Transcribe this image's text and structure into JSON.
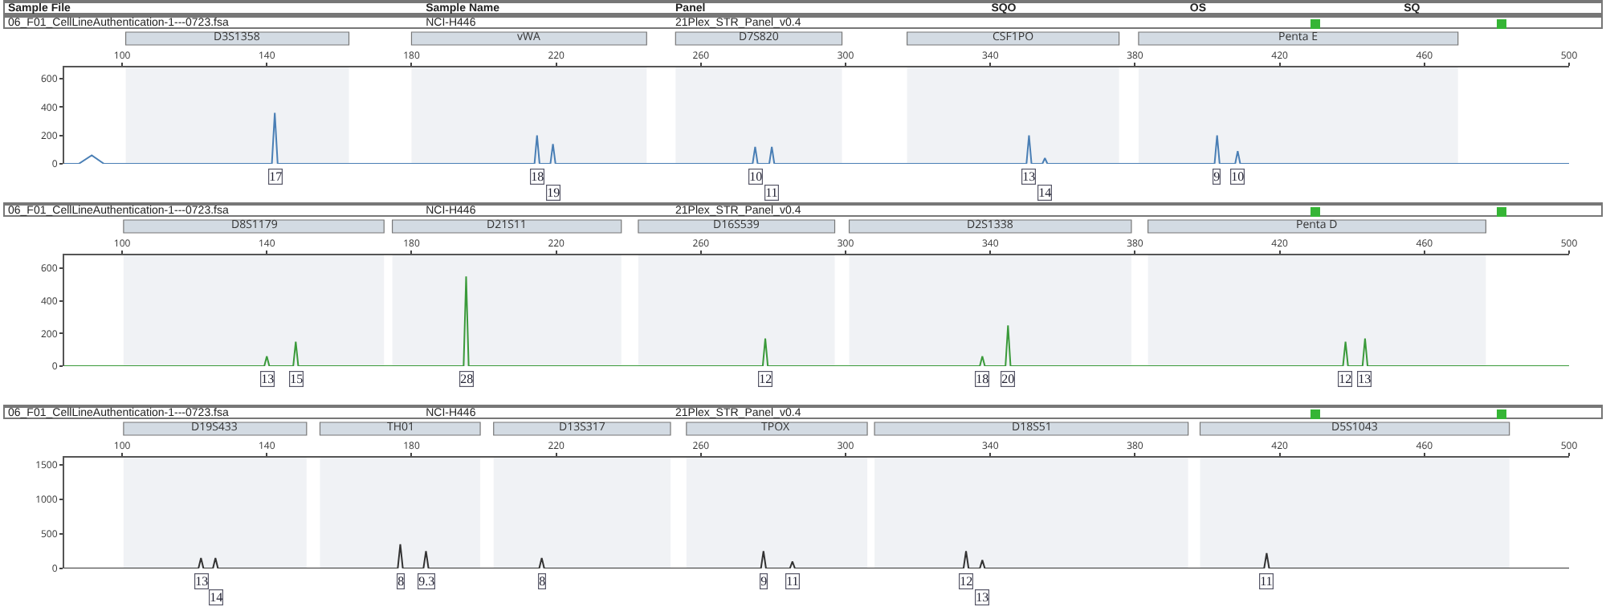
{
  "chart_data": [
    {
      "type": "line",
      "color": "#4a7fb5",
      "xlim": [
        84,
        500
      ],
      "xticks": [
        100,
        140,
        180,
        220,
        260,
        300,
        340,
        380,
        420,
        460,
        500
      ],
      "ylim": [
        0,
        680
      ],
      "yticks": [
        0,
        200,
        400,
        600
      ],
      "grid": false,
      "marker": "none",
      "line_style": "solid",
      "x": [
        84,
        88,
        91.6,
        95,
        141.4,
        142.2,
        143,
        214,
        214.7,
        215.4,
        218.4,
        219.1,
        219.8,
        274.3,
        275,
        275.7,
        278.9,
        279.6,
        280.3,
        350,
        350.7,
        351.4,
        354.4,
        355.1,
        355.8,
        402,
        402.7,
        403.4,
        407.7,
        408.4,
        409.1,
        500
      ],
      "values": [
        0,
        0,
        60,
        0,
        0,
        360,
        0,
        0,
        200,
        0,
        0,
        140,
        0,
        0,
        120,
        0,
        0,
        120,
        0,
        0,
        200,
        0,
        0,
        40,
        0,
        0,
        200,
        0,
        0,
        90,
        0,
        0
      ],
      "bands": [
        {
          "axis": "x",
          "from": 101,
          "to": 162.7,
          "label": "D3S1358",
          "color": "#d3dbe3"
        },
        {
          "axis": "x",
          "from": 180,
          "to": 245,
          "label": "vWA",
          "color": "#d3dbe3"
        },
        {
          "axis": "x",
          "from": 253,
          "to": 299,
          "label": "D7S820",
          "color": "#d3dbe3"
        },
        {
          "axis": "x",
          "from": 317,
          "to": 375.6,
          "label": "CSF1PO",
          "color": "#d3dbe3"
        },
        {
          "axis": "x",
          "from": 381,
          "to": 469.3,
          "label": "Penta E",
          "color": "#d3dbe3"
        }
      ],
      "annotations": [
        "Sample File",
        "Sample Name",
        "Panel",
        "SQO",
        "OS",
        "SQ",
        "06_F01_CellLineAuthentication-1---0723.fsa",
        "NCI-H446",
        "21Plex_STR_Panel_v0.4",
        {
          "text": "17",
          "x": 142.2,
          "y": 0
        },
        {
          "text": "18",
          "x": 214.7,
          "y": 0
        },
        {
          "text": "19",
          "x": 219.1,
          "y": 0
        },
        {
          "text": "10",
          "x": 275,
          "y": 0
        },
        {
          "text": "11",
          "x": 279.6,
          "y": 0
        },
        {
          "text": "13",
          "x": 350.7,
          "y": 0
        },
        {
          "text": "14",
          "x": 355.1,
          "y": 0
        },
        {
          "text": "9",
          "x": 402.7,
          "y": 0
        },
        {
          "text": "10",
          "x": 408.4,
          "y": 0
        }
      ]
    },
    {
      "type": "line",
      "color": "#3a9a3a",
      "xlim": [
        84,
        500
      ],
      "xticks": [
        100,
        140,
        180,
        220,
        260,
        300,
        340,
        380,
        420,
        460,
        500
      ],
      "ylim": [
        0,
        680
      ],
      "yticks": [
        0,
        200,
        400,
        600
      ],
      "grid": false,
      "marker": "none",
      "line_style": "solid",
      "x": [
        84,
        139.3,
        140,
        140.7,
        147.3,
        148,
        148.7,
        194.4,
        195.1,
        195.8,
        277.1,
        277.8,
        278.5,
        337.1,
        337.8,
        338.5,
        344.2,
        344.9,
        345.6,
        437.5,
        438.2,
        438.9,
        442.9,
        443.6,
        444.3,
        500
      ],
      "values": [
        0,
        0,
        60,
        0,
        0,
        150,
        0,
        0,
        550,
        0,
        0,
        170,
        0,
        0,
        60,
        0,
        0,
        250,
        0,
        0,
        150,
        0,
        0,
        170,
        0,
        0
      ],
      "bands": [
        {
          "axis": "x",
          "from": 100.4,
          "to": 172.4,
          "label": "D8S1179",
          "color": "#d3dbe3"
        },
        {
          "axis": "x",
          "from": 174.7,
          "to": 238,
          "label": "D21S11",
          "color": "#d3dbe3"
        },
        {
          "axis": "x",
          "from": 242.7,
          "to": 297,
          "label": "D16S539",
          "color": "#d3dbe3"
        },
        {
          "axis": "x",
          "from": 301,
          "to": 379,
          "label": "D2S1338",
          "color": "#d3dbe3"
        },
        {
          "axis": "x",
          "from": 383.6,
          "to": 477,
          "label": "Penta D",
          "color": "#d3dbe3"
        }
      ],
      "annotations": [
        "06_F01_CellLineAuthentication-1---0723.fsa",
        "NCI-H446",
        "21Plex_STR_Panel_v0.4",
        {
          "text": "13",
          "x": 140,
          "y": 0
        },
        {
          "text": "15",
          "x": 148,
          "y": 0
        },
        {
          "text": "28",
          "x": 195.1,
          "y": 0
        },
        {
          "text": "12",
          "x": 277.8,
          "y": 0
        },
        {
          "text": "18",
          "x": 337.8,
          "y": 0
        },
        {
          "text": "20",
          "x": 344.9,
          "y": 0
        },
        {
          "text": "12",
          "x": 438.2,
          "y": 0
        },
        {
          "text": "13",
          "x": 443.6,
          "y": 0
        }
      ]
    },
    {
      "type": "line",
      "color": "#333333",
      "xlim": [
        84,
        500
      ],
      "xticks": [
        100,
        140,
        180,
        220,
        260,
        300,
        340,
        380,
        420,
        460,
        500
      ],
      "ylim": [
        0,
        1600
      ],
      "yticks": [
        0,
        500,
        1000,
        1500
      ],
      "grid": false,
      "marker": "none",
      "line_style": "solid",
      "x": [
        84,
        121.1,
        121.8,
        122.5,
        125.1,
        125.8,
        126.5,
        176.2,
        176.9,
        177.6,
        183.3,
        184,
        184.7,
        215.3,
        216,
        216.7,
        276.6,
        277.3,
        278,
        284.6,
        285.3,
        286,
        332.6,
        333.3,
        334,
        337.1,
        337.8,
        338.5,
        415.7,
        416.4,
        417.1,
        500
      ],
      "values": [
        0,
        0,
        150,
        0,
        0,
        150,
        0,
        0,
        350,
        0,
        0,
        250,
        0,
        0,
        150,
        0,
        0,
        250,
        0,
        0,
        100,
        0,
        0,
        250,
        0,
        0,
        120,
        0,
        0,
        220,
        0,
        0
      ],
      "bands": [
        {
          "axis": "x",
          "from": 100.4,
          "to": 151,
          "label": "D19S433",
          "color": "#d3dbe3"
        },
        {
          "axis": "x",
          "from": 154.7,
          "to": 199,
          "label": "TH01",
          "color": "#d3dbe3"
        },
        {
          "axis": "x",
          "from": 202.7,
          "to": 251.6,
          "label": "D13S317",
          "color": "#d3dbe3"
        },
        {
          "axis": "x",
          "from": 256,
          "to": 306,
          "label": "TPOX",
          "color": "#d3dbe3"
        },
        {
          "axis": "x",
          "from": 308,
          "to": 394.7,
          "label": "D18S51",
          "color": "#d3dbe3"
        },
        {
          "axis": "x",
          "from": 398,
          "to": 483.5,
          "label": "D5S1043",
          "color": "#d3dbe3"
        }
      ],
      "annotations": [
        "06_F01_CellLineAuthentication-1---0723.fsa",
        "NCI-H446",
        "21Plex_STR_Panel_v0.4",
        {
          "text": "13",
          "x": 121.8,
          "y": 0
        },
        {
          "text": "14",
          "x": 125.8,
          "y": 0
        },
        {
          "text": "8",
          "x": 176.9,
          "y": 0
        },
        {
          "text": "9.3",
          "x": 184,
          "y": 0
        },
        {
          "text": "8",
          "x": 216,
          "y": 0
        },
        {
          "text": "9",
          "x": 277.3,
          "y": 0
        },
        {
          "text": "11",
          "x": 285.3,
          "y": 0
        },
        {
          "text": "12",
          "x": 333.3,
          "y": 0
        },
        {
          "text": "13",
          "x": 337.8,
          "y": 0
        },
        {
          "text": "11",
          "x": 416.4,
          "y": 0
        }
      ]
    }
  ]
}
